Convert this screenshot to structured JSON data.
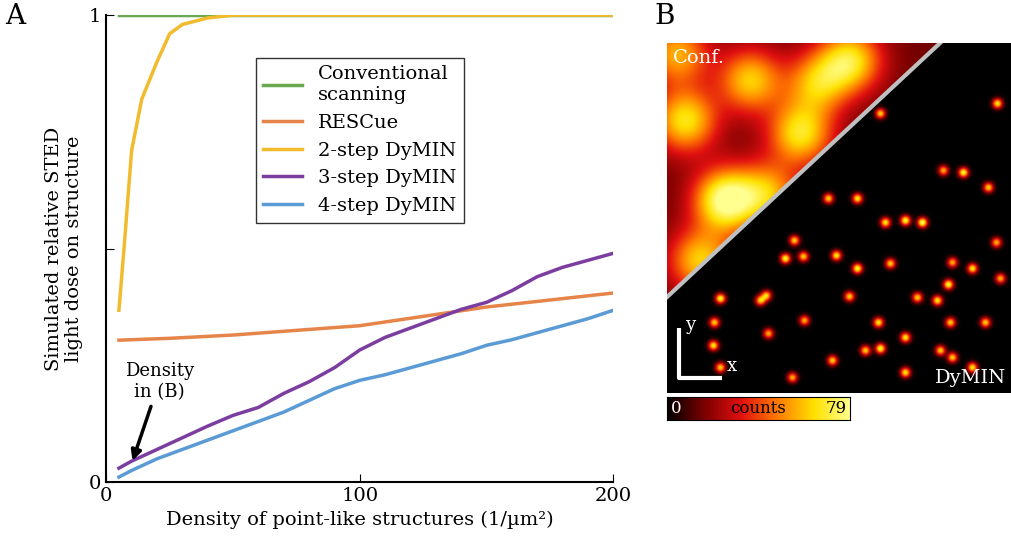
{
  "chart_data": [
    {
      "type": "line",
      "panel_label": "A",
      "y_label": "Simulated relative STED\nlight dose on structure",
      "x_label": "Density of point-like structures (1/µm²)",
      "xlim": [
        0,
        200
      ],
      "xticks": [
        0,
        100,
        200
      ],
      "ylim": [
        0,
        1
      ],
      "yticks": [
        0,
        {
          "value": 0.5,
          "label": null
        },
        1
      ],
      "legend": "upper center",
      "annotation": {
        "text": "Density\nin (B)",
        "x": 10,
        "y": 0.04
      },
      "series": [
        {
          "name": "Conventional\nscanning",
          "color": "#6aa84f",
          "x": [
            5,
            200
          ],
          "values": [
            1,
            1
          ]
        },
        {
          "name": "RESCue",
          "color": "#e6854a",
          "x": [
            5,
            25,
            50,
            75,
            100,
            125,
            150,
            175,
            200
          ],
          "values": [
            0.304,
            0.308,
            0.315,
            0.325,
            0.335,
            0.355,
            0.375,
            0.39,
            0.405
          ]
        },
        {
          "name": "2-step DyMIN",
          "color": "#f2bb2e",
          "x": [
            5,
            7,
            10,
            14,
            20,
            25,
            30,
            40,
            50,
            200
          ],
          "values": [
            0.368,
            0.5,
            0.71,
            0.82,
            0.9,
            0.96,
            0.98,
            0.994,
            1,
            1
          ]
        },
        {
          "name": "3-step DyMIN",
          "color": "#7b3ea0",
          "x": [
            5,
            10,
            20,
            30,
            40,
            50,
            60,
            70,
            80,
            90,
            100,
            110,
            120,
            130,
            140,
            150,
            160,
            170,
            180,
            190,
            200
          ],
          "values": [
            0.03,
            0.045,
            0.07,
            0.095,
            0.12,
            0.143,
            0.16,
            0.19,
            0.215,
            0.245,
            0.283,
            0.31,
            0.33,
            0.35,
            0.37,
            0.385,
            0.41,
            0.44,
            0.46,
            0.475,
            0.49
          ]
        },
        {
          "name": "4-step DyMIN",
          "color": "#5b9bd5",
          "x": [
            5,
            10,
            20,
            30,
            40,
            50,
            60,
            70,
            80,
            90,
            100,
            110,
            120,
            130,
            140,
            150,
            160,
            170,
            180,
            190,
            200
          ],
          "values": [
            0.011,
            0.025,
            0.05,
            0.07,
            0.09,
            0.11,
            0.13,
            0.15,
            0.175,
            0.2,
            0.218,
            0.23,
            0.245,
            0.26,
            0.275,
            0.293,
            0.305,
            0.32,
            0.335,
            0.35,
            0.368
          ]
        }
      ]
    },
    {
      "type": "image",
      "panel_label": "B",
      "tick_labels": false,
      "width": 345,
      "height": 350,
      "region_labels": [
        "Conf.",
        "DyMIN"
      ],
      "axis_labels": [
        "x",
        "y"
      ],
      "colorbar_label": "counts",
      "colorbar_range": [
        0,
        79
      ],
      "colorbar_ticks": [
        0,
        79
      ],
      "confocal_background": 15,
      "confocal_blobs": {
        "x": [
          58,
          18,
          83,
          133,
          33,
          183,
          100,
          10,
          150
        ],
        "y": [
          157,
          77,
          37,
          90,
          217,
          17,
          150,
          10,
          40
        ],
        "counts": [
          65,
          50,
          45,
          50,
          45,
          50,
          40,
          40,
          40
        ]
      },
      "dymin_spots": {
        "x": [
          213,
          330,
          296,
          321,
          276,
          190,
          161,
          238,
          218,
          255,
          127,
          329,
          118,
          136,
          169,
          190,
          223,
          285,
          305,
          99,
          182,
          270,
          281,
          250,
          333,
          53,
          93,
          47,
          137,
          211,
          283,
          318,
          238,
          101,
          198,
          213,
          46,
          53,
          238,
          273,
          125,
          165,
          305,
          285
        ],
        "y": [
          70,
          60,
          129,
          144,
          127,
          155,
          155,
          177,
          179,
          179,
          197,
          199,
          215,
          213,
          212,
          225,
          220,
          219,
          225,
          252,
          253,
          257,
          241,
          254,
          235,
          255,
          257,
          279,
          277,
          279,
          279,
          279,
          294,
          290,
          307,
          305,
          302,
          324,
          329,
          307,
          334,
          317,
          324,
          314
        ],
        "counts": [
          60,
          65,
          70,
          60,
          55,
          65,
          60,
          70,
          65,
          75,
          60,
          55,
          70,
          60,
          65,
          70,
          60,
          55,
          65,
          60,
          60,
          65,
          70,
          60,
          55,
          70,
          60,
          60,
          55,
          65,
          60,
          60,
          65,
          55,
          60,
          70,
          65,
          60,
          65,
          60,
          55,
          60,
          65,
          60
        ]
      }
    }
  ]
}
